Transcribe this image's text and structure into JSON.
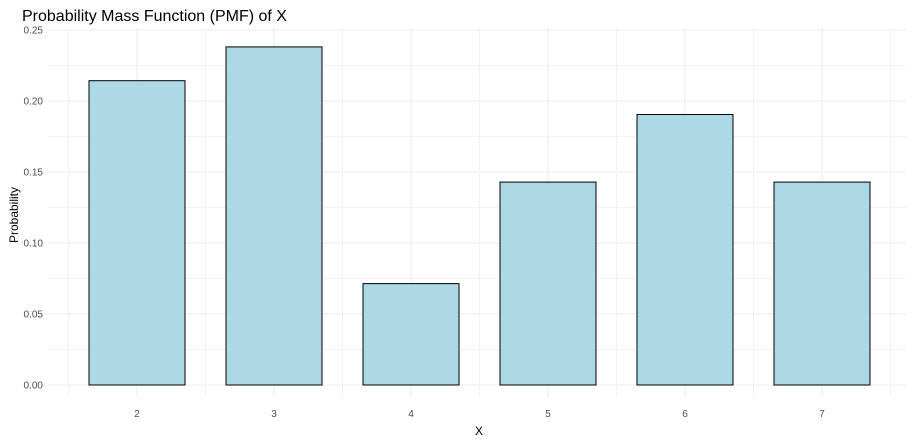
{
  "chart_data": {
    "type": "bar",
    "title": "Probability Mass Function (PMF) of X",
    "xlabel": "X",
    "ylabel": "Probability",
    "categories": [
      "2",
      "3",
      "4",
      "5",
      "6",
      "7"
    ],
    "values": [
      0.2143,
      0.2381,
      0.0714,
      0.1429,
      0.1905,
      0.1429
    ],
    "ylim": [
      0,
      0.25
    ],
    "y_ticks": [
      "0.00",
      "0.05",
      "0.10",
      "0.15",
      "0.20",
      "0.25"
    ],
    "grid": true,
    "legend": "none",
    "colors": {
      "bar_fill": "#add8e6",
      "bar_stroke": "#000000",
      "grid": "#ebebeb"
    }
  }
}
